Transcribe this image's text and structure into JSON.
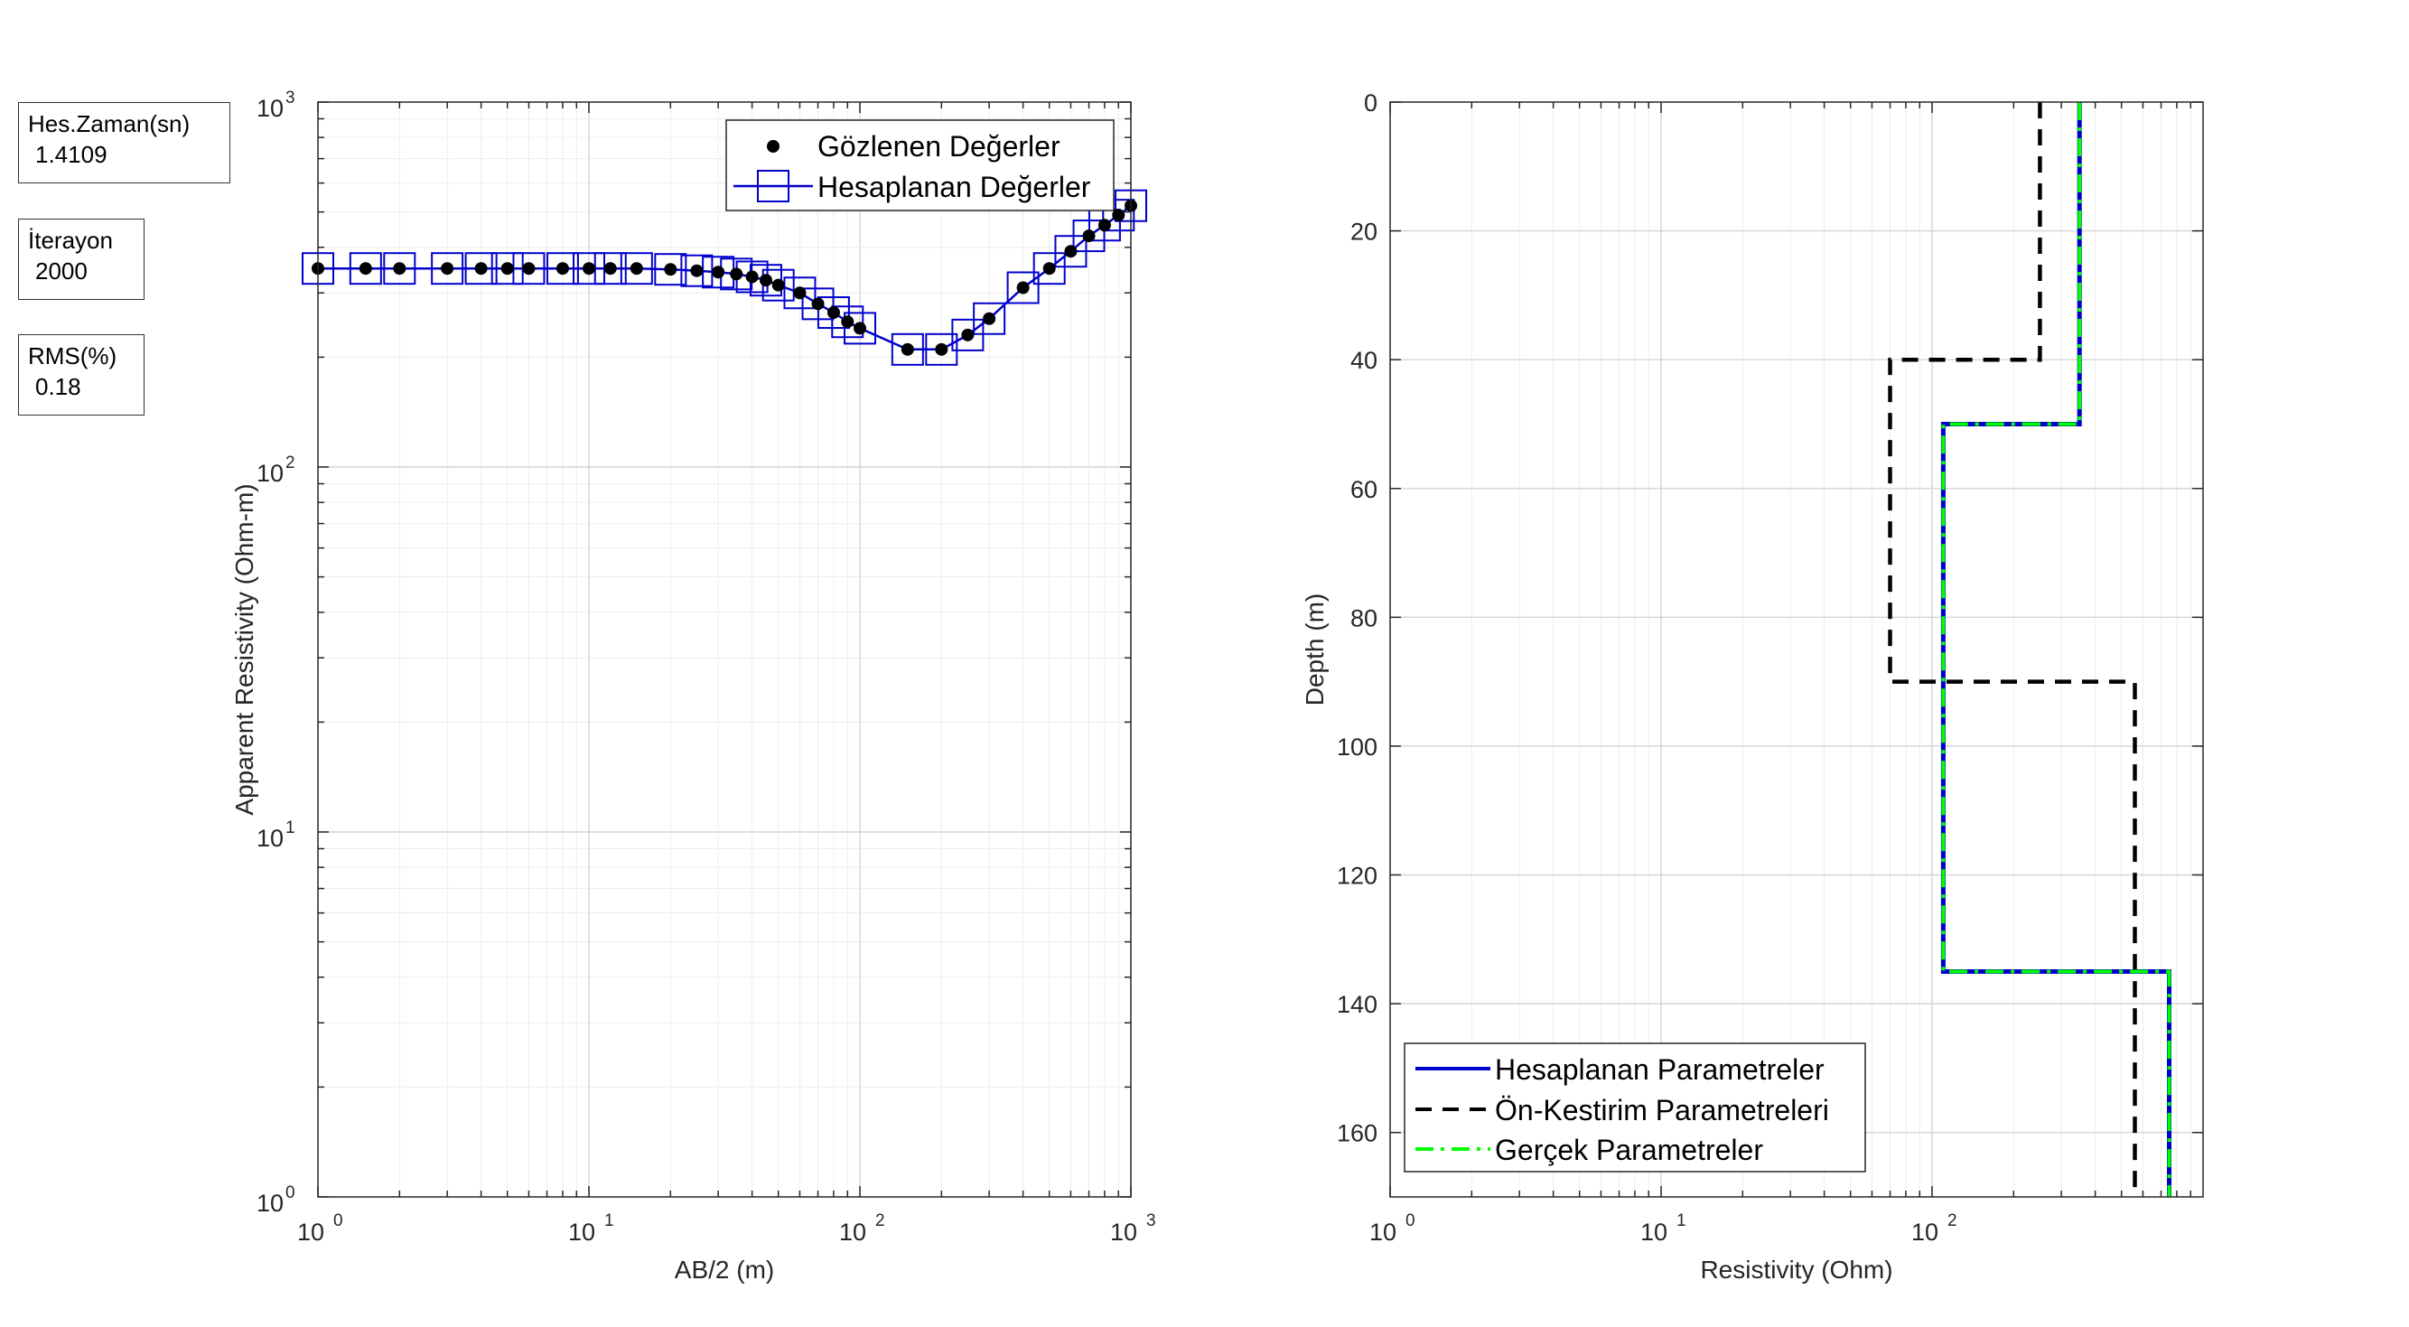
{
  "info_boxes": [
    {
      "label": "Hes.Zaman(sn)",
      "value": "1.4109"
    },
    {
      "label": "İterayon",
      "value": "2000"
    },
    {
      "label": "RMS(%)",
      "value": "0.18"
    }
  ],
  "colors": {
    "observed": "#000000",
    "calculated": "#0000cc",
    "initial": "#000000",
    "true": "#00ff00",
    "grid": "#dcdcdc",
    "axis": "#262626"
  },
  "chart_data": [
    {
      "type": "line",
      "xlabel": "AB/2 (m)",
      "ylabel": "Apparent Resistivity (Ohm-m)",
      "xscale": "log",
      "yscale": "log",
      "xlim": [
        1,
        1000
      ],
      "ylim": [
        1,
        1000
      ],
      "x_ticks": [
        "10",
        "10",
        "10",
        "10"
      ],
      "x_tick_exponents": [
        "0",
        "1",
        "2",
        "3"
      ],
      "y_ticks": [
        "10",
        "10",
        "10",
        "10"
      ],
      "y_tick_exponents": [
        "0",
        "1",
        "2",
        "3"
      ],
      "grid": true,
      "legend_position": "top-right",
      "series": [
        {
          "name": "Gözlenen Değerler",
          "style": "markers",
          "x": [
            1,
            1.5,
            2,
            3,
            4,
            5,
            6,
            8,
            10,
            12,
            15,
            20,
            25,
            30,
            35,
            40,
            45,
            50,
            60,
            70,
            80,
            90,
            100,
            150,
            200,
            250,
            300,
            400,
            500,
            600,
            700,
            800,
            900,
            1000
          ],
          "y": [
            350,
            350,
            350,
            350,
            350,
            350,
            350,
            350,
            350,
            350,
            350,
            348,
            345,
            342,
            338,
            332,
            325,
            315,
            300,
            280,
            265,
            250,
            240,
            210,
            210,
            230,
            255,
            310,
            350,
            390,
            430,
            460,
            490,
            520
          ]
        },
        {
          "name": "Hesaplanan Değerler",
          "style": "line-squares",
          "x": [
            1,
            1.5,
            2,
            3,
            4,
            5,
            6,
            8,
            10,
            12,
            15,
            20,
            25,
            30,
            35,
            40,
            45,
            50,
            60,
            70,
            80,
            90,
            100,
            150,
            200,
            250,
            300,
            400,
            500,
            600,
            700,
            800,
            900,
            1000
          ],
          "y": [
            350,
            350,
            350,
            350,
            350,
            350,
            350,
            350,
            350,
            350,
            350,
            348,
            345,
            342,
            338,
            332,
            325,
            315,
            300,
            280,
            265,
            250,
            240,
            210,
            210,
            230,
            255,
            310,
            350,
            390,
            430,
            460,
            490,
            520
          ]
        }
      ]
    },
    {
      "type": "line",
      "xlabel": "Resistivity (Ohm)",
      "ylabel": "Depth (m)",
      "xscale": "log",
      "xlim": [
        1,
        1000
      ],
      "ylim": [
        0,
        170
      ],
      "y_reversed": true,
      "x_ticks": [
        "10",
        "10",
        "10"
      ],
      "x_tick_exponents": [
        "0",
        "1",
        "2"
      ],
      "y_ticks": [
        "0",
        "20",
        "40",
        "60",
        "80",
        "100",
        "120",
        "140",
        "160"
      ],
      "grid": true,
      "legend_position": "bottom-left",
      "series": [
        {
          "name": "Hesaplanan Parametreler",
          "style": "solid",
          "resistivity": [
            350,
            110,
            750
          ],
          "boundaries": [
            50,
            135
          ]
        },
        {
          "name": "Ön-Kestirim Parametreleri",
          "style": "dashed",
          "resistivity": [
            250,
            70,
            560
          ],
          "boundaries": [
            40,
            90
          ]
        },
        {
          "name": "Gerçek Parametreler",
          "style": "dash-dot",
          "resistivity": [
            350,
            110,
            750
          ],
          "boundaries": [
            50,
            135
          ]
        }
      ]
    }
  ]
}
